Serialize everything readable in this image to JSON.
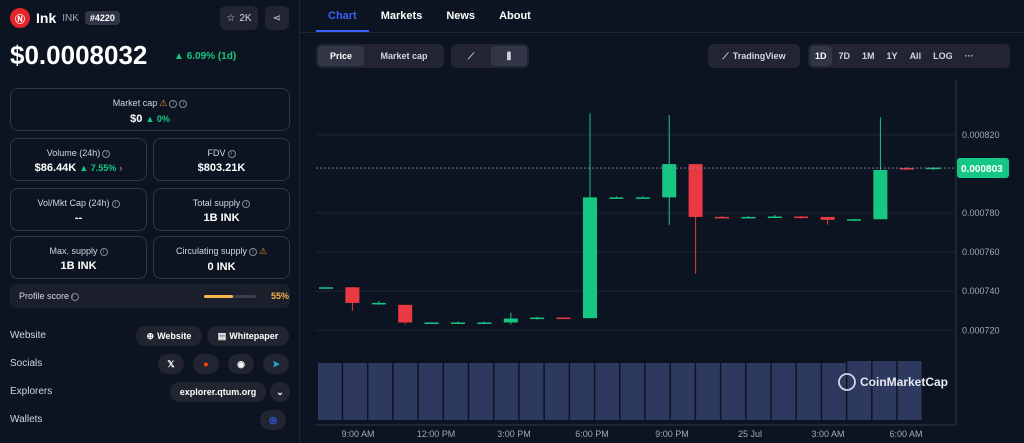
{
  "coin": {
    "name": "Ink",
    "symbol": "INK",
    "rank": "#4220",
    "price": "$0.0008032",
    "change": "6.09% (1d)",
    "watchers": "2K"
  },
  "stats": {
    "market_cap": {
      "label": "Market cap",
      "value": "$0",
      "change": "0%"
    },
    "volume": {
      "label": "Volume (24h)",
      "value": "$86.44K",
      "change": "7.55%"
    },
    "fdv": {
      "label": "FDV",
      "value": "$803.21K"
    },
    "vol_mkt": {
      "label": "Vol/Mkt Cap (24h)",
      "value": "--"
    },
    "total_supply": {
      "label": "Total supply",
      "value": "1B INK"
    },
    "max_supply": {
      "label": "Max. supply",
      "value": "1B INK"
    },
    "circ_supply": {
      "label": "Circulating supply",
      "value": "0 INK"
    }
  },
  "profile": {
    "label": "Profile score",
    "value": "55%",
    "score": 0.55
  },
  "links": {
    "website_label": "Website",
    "socials_label": "Socials",
    "explorers_label": "Explorers",
    "wallets_label": "Wallets",
    "website_btn": "Website",
    "whitepaper_btn": "Whitepaper",
    "explorer_btn": "explorer.qtum.org"
  },
  "tabs": [
    "Chart",
    "Markets",
    "News",
    "About"
  ],
  "controls": {
    "price_toggle": [
      "Price",
      "Market cap"
    ],
    "tradingview": "TradingView",
    "ranges": [
      "1D",
      "7D",
      "1M",
      "1Y",
      "All",
      "LOG",
      "···"
    ]
  },
  "chart_data": {
    "type": "candlestick",
    "current_price_label": "0.000803",
    "y_ticks": [
      "0.000820",
      "0.000780",
      "0.000760",
      "0.000740",
      "0.000720"
    ],
    "x_ticks": [
      "9:00 AM",
      "12:00 PM",
      "3:00 PM",
      "6:00 PM",
      "9:00 PM",
      "25 Jul",
      "3:00 AM",
      "6:00 AM"
    ],
    "watermark": "CoinMarketCap",
    "candles": [
      {
        "o": 0.000742,
        "h": 0.000742,
        "l": 0.000742,
        "c": 0.000742
      },
      {
        "o": 0.000742,
        "h": 0.000742,
        "l": 0.00073,
        "c": 0.000734
      },
      {
        "o": 0.000734,
        "h": 0.000735,
        "l": 0.000733,
        "c": 0.000734
      },
      {
        "o": 0.000733,
        "h": 0.000733,
        "l": 0.000723,
        "c": 0.000724
      },
      {
        "o": 0.000724,
        "h": 0.000724,
        "l": 0.0007235,
        "c": 0.000724
      },
      {
        "o": 0.000724,
        "h": 0.0007245,
        "l": 0.0007235,
        "c": 0.000724
      },
      {
        "o": 0.000724,
        "h": 0.0007245,
        "l": 0.0007235,
        "c": 0.000724
      },
      {
        "o": 0.000724,
        "h": 0.000729,
        "l": 0.000723,
        "c": 0.000726
      },
      {
        "o": 0.000726,
        "h": 0.000727,
        "l": 0.0007255,
        "c": 0.0007265
      },
      {
        "o": 0.0007265,
        "h": 0.0007265,
        "l": 0.000726,
        "c": 0.0007262
      },
      {
        "o": 0.0007262,
        "h": 0.000831,
        "l": 0.0007262,
        "c": 0.000788
      },
      {
        "o": 0.000788,
        "h": 0.0007885,
        "l": 0.0007875,
        "c": 0.000788
      },
      {
        "o": 0.000788,
        "h": 0.0007885,
        "l": 0.0007875,
        "c": 0.000788
      },
      {
        "o": 0.000788,
        "h": 0.00083,
        "l": 0.000774,
        "c": 0.000805
      },
      {
        "o": 0.000805,
        "h": 0.000805,
        "l": 0.000749,
        "c": 0.000778
      },
      {
        "o": 0.000778,
        "h": 0.0007785,
        "l": 0.0007775,
        "c": 0.0007778
      },
      {
        "o": 0.0007778,
        "h": 0.0007785,
        "l": 0.0007775,
        "c": 0.000778
      },
      {
        "o": 0.000778,
        "h": 0.000779,
        "l": 0.0007775,
        "c": 0.0007782
      },
      {
        "o": 0.0007782,
        "h": 0.0007785,
        "l": 0.000777,
        "c": 0.0007775
      },
      {
        "o": 0.000778,
        "h": 0.000778,
        "l": 0.000774,
        "c": 0.0007765
      },
      {
        "o": 0.0007765,
        "h": 0.000777,
        "l": 0.000776,
        "c": 0.0007768
      },
      {
        "o": 0.0007768,
        "h": 0.000829,
        "l": 0.0007768,
        "c": 0.000802
      },
      {
        "o": 0.000803,
        "h": 0.0008035,
        "l": 0.000802,
        "c": 0.0008025
      },
      {
        "o": 0.0008025,
        "h": 0.0008035,
        "l": 0.000802,
        "c": 0.0008032
      }
    ],
    "ylim": [
      0.000714,
      0.000846
    ]
  }
}
